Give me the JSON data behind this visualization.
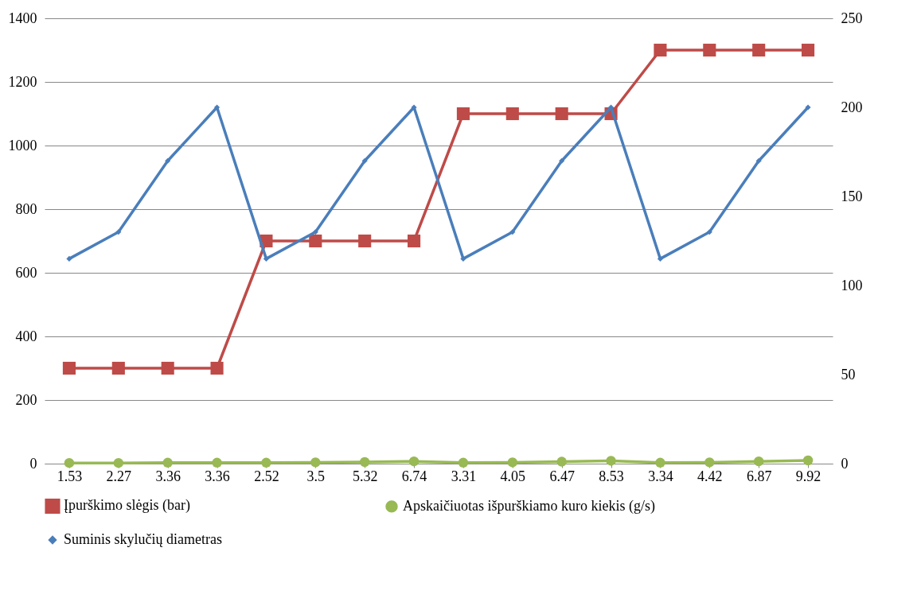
{
  "chart_data": {
    "type": "line",
    "categories": [
      "1.53",
      "2.27",
      "3.36",
      "3.36",
      "2.52",
      "3.5",
      "5.32",
      "6.74",
      "3.31",
      "4.05",
      "6.47",
      "8.53",
      "3.34",
      "4.42",
      "6.87",
      "9.92"
    ],
    "series": [
      {
        "name": "Įpurškimo slėgis (bar)",
        "color": "#be4b48",
        "marker": "square",
        "values": [
          300,
          300,
          300,
          300,
          700,
          700,
          700,
          700,
          1100,
          1100,
          1100,
          1100,
          1300,
          1300,
          1300,
          1300
        ]
      },
      {
        "name": "Apskaičiuotas išpurškiamo kuro kiekis (g/s)",
        "color": "#98b954",
        "marker": "circle",
        "values": [
          2,
          2,
          3,
          3,
          3,
          4,
          5,
          7,
          3,
          4,
          6,
          9,
          3,
          4,
          7,
          10
        ]
      },
      {
        "name": "Suminis skylučių diametras",
        "color": "#4a7ebb",
        "marker": "diamond",
        "axis": "y2",
        "values": [
          115,
          130,
          170,
          200,
          115,
          130,
          170,
          200,
          115,
          130,
          170,
          200,
          115,
          130,
          170,
          200
        ]
      }
    ],
    "ylim": [
      0,
      1400
    ],
    "yticks": [
      0,
      200,
      400,
      600,
      800,
      1000,
      1200,
      1400
    ],
    "y2lim": [
      0,
      250
    ],
    "y2ticks": [
      0,
      50,
      100,
      150,
      200,
      250
    ],
    "grid": "y",
    "legend": "bottom"
  }
}
